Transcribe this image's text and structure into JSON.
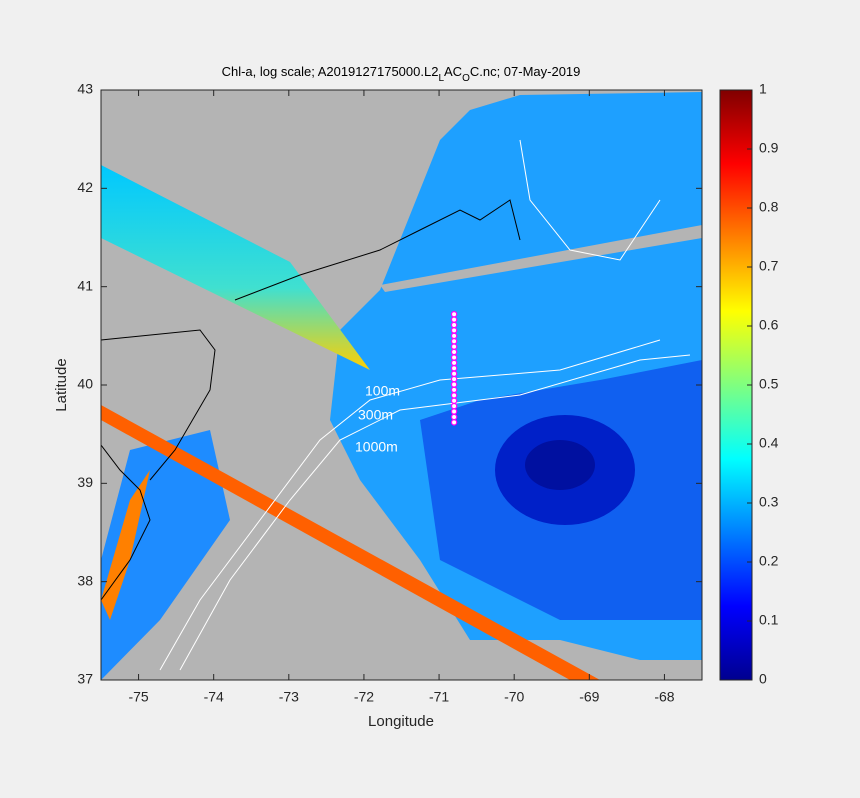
{
  "chart_data": {
    "type": "map",
    "title_parts": [
      {
        "text": "Chl-a, log scale; A2019127175000.L2"
      },
      {
        "text": "L",
        "sub": true
      },
      {
        "text": "AC"
      },
      {
        "text": "O",
        "sub": true
      },
      {
        "text": "C.nc; 07-May-2019"
      }
    ],
    "xlabel": "Longitude",
    "ylabel": "Latitude",
    "xlim": [
      -75.5,
      -67.5
    ],
    "xticks": [
      -75,
      -74,
      -73,
      -72,
      -71,
      -70,
      -69,
      -68
    ],
    "ylim": [
      37,
      43
    ],
    "yticks": [
      37,
      38,
      39,
      40,
      41,
      42,
      43
    ],
    "colormap": "jet",
    "colorbar_lim": [
      0,
      1
    ],
    "colorbar_ticks": [
      0,
      0.1,
      0.2,
      0.3,
      0.4,
      0.5,
      0.6,
      0.7,
      0.8,
      0.9,
      1
    ],
    "annotations": [
      "100m",
      "300m",
      "1000m"
    ],
    "marker_color": "#ff00ff",
    "x": [
      -70.8,
      -70.8,
      -70.8,
      -70.8,
      -70.8,
      -70.8,
      -70.8,
      -70.8,
      -70.8,
      -70.8,
      -70.8,
      -70.8,
      -70.8,
      -70.8,
      -70.8,
      -70.8,
      -70.8,
      -70.8,
      -70.8,
      -70.8,
      -70.8
    ],
    "y": [
      39.62,
      39.675,
      39.73,
      39.785,
      39.84,
      39.895,
      39.95,
      40.005,
      40.06,
      40.115,
      40.17,
      40.225,
      40.28,
      40.335,
      40.39,
      40.445,
      40.5,
      40.555,
      40.61,
      40.665,
      40.72
    ]
  }
}
